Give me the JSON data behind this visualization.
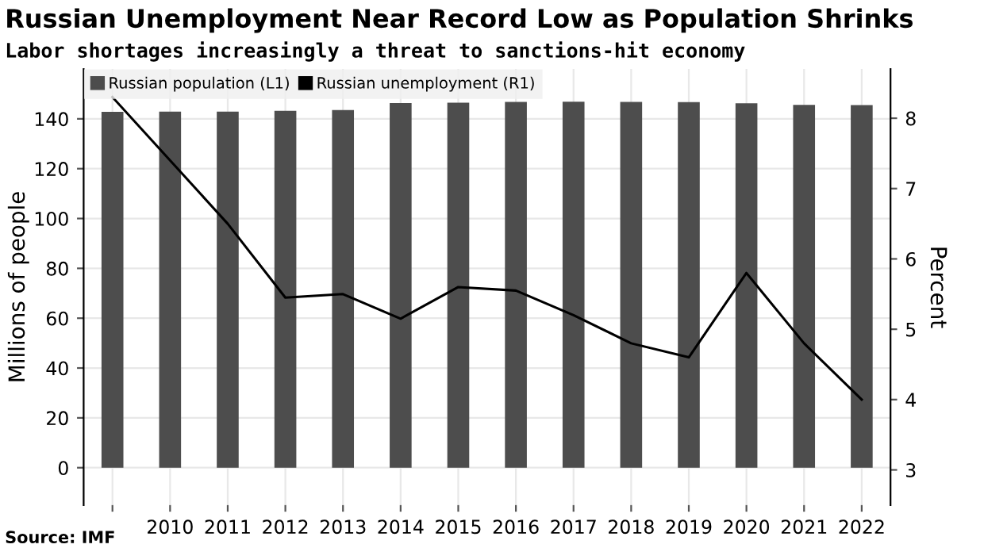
{
  "chart_data": {
    "type": "bar",
    "title": "Russian Unemployment Near Record Low as Population Shrinks",
    "subtitle": "Labor shortages increasingly a threat to sanctions-hit economy",
    "ylabel": "Millions of people",
    "y2label": "Percent",
    "categories": [
      null,
      "2010",
      "2011",
      "2012",
      "2013",
      "2014",
      "2015",
      "2016",
      "2017",
      "2018",
      "2019",
      "2020",
      "2021",
      "2022"
    ],
    "series": [
      {
        "name": "Russian population (L1)",
        "color": "#4d4d4d",
        "values": [
          142.8,
          142.9,
          142.9,
          143.2,
          143.5,
          146.3,
          146.5,
          146.8,
          146.9,
          146.8,
          146.7,
          146.2,
          145.6,
          145.5
        ]
      },
      {
        "name": "Russian unemployment (R1)",
        "type": "line",
        "axis": "y2",
        "color": "#000000",
        "values": [
          8.3,
          7.4,
          6.5,
          5.45,
          5.5,
          5.15,
          5.6,
          5.55,
          5.2,
          4.8,
          4.6,
          5.8,
          4.8,
          4.0
        ]
      }
    ],
    "ylim": [
      -15,
      160
    ],
    "yticks": [
      0,
      20,
      40,
      60,
      80,
      100,
      120,
      140
    ],
    "y2lim": [
      2.5,
      8.7
    ],
    "y2ticks": [
      3,
      4,
      5,
      6,
      7,
      8
    ],
    "grid": true,
    "legend": "top left",
    "marker": "none",
    "line_style": "solid",
    "annotations": [
      "Source: IMF"
    ]
  }
}
